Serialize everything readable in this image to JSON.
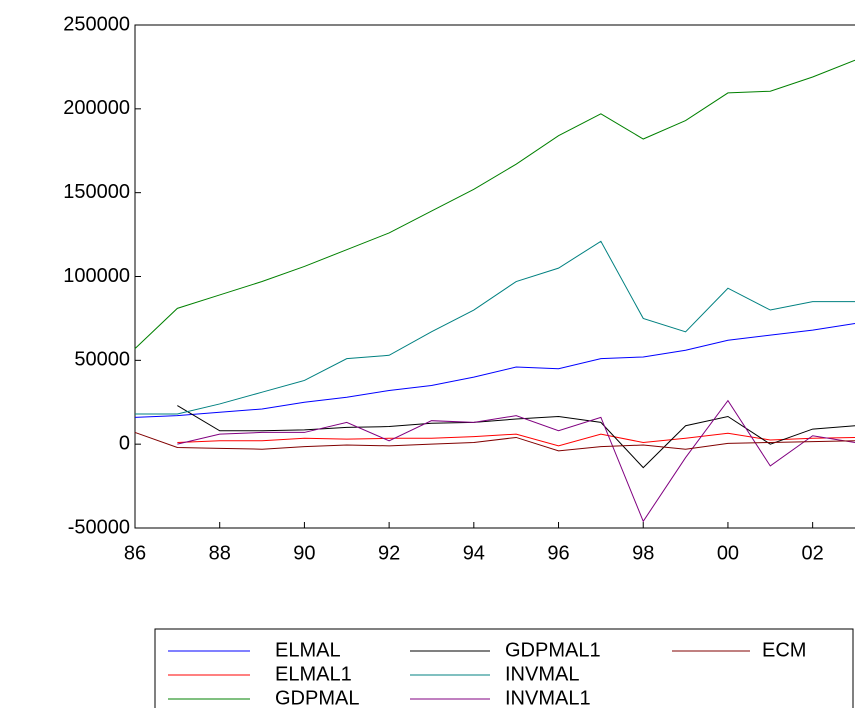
{
  "chart_data": {
    "type": "line",
    "x": [
      1986,
      1987,
      1988,
      1989,
      1990,
      1991,
      1992,
      1993,
      1994,
      1995,
      1996,
      1997,
      1998,
      1999,
      2000,
      2001,
      2002,
      2003
    ],
    "xlim": [
      1986,
      2003
    ],
    "xticks": [
      {
        "value": 1986,
        "label": "86"
      },
      {
        "value": 1988,
        "label": "88"
      },
      {
        "value": 1990,
        "label": "90"
      },
      {
        "value": 1992,
        "label": "92"
      },
      {
        "value": 1994,
        "label": "94"
      },
      {
        "value": 1996,
        "label": "96"
      },
      {
        "value": 1998,
        "label": "98"
      },
      {
        "value": 2000,
        "label": "00"
      },
      {
        "value": 2002,
        "label": "02"
      }
    ],
    "ylim": [
      -50000,
      250000
    ],
    "yticks": [
      -50000,
      0,
      50000,
      100000,
      150000,
      200000,
      250000
    ],
    "series": [
      {
        "name": "ELMAL",
        "color": "#0000ff",
        "values": [
          16000,
          17000,
          19000,
          21000,
          25000,
          28000,
          32000,
          35000,
          40000,
          46000,
          45000,
          51000,
          52000,
          56000,
          62000,
          65000,
          68000,
          72000
        ]
      },
      {
        "name": "ELMAL1",
        "color": "#ff0000",
        "values": [
          null,
          1000,
          2000,
          2000,
          3500,
          3000,
          3500,
          3500,
          4500,
          6000,
          -1000,
          6000,
          1000,
          3500,
          6500,
          2500,
          3500,
          4000
        ]
      },
      {
        "name": "GDPMAL",
        "color": "#008000",
        "values": [
          57000,
          81000,
          89000,
          97000,
          106000,
          116000,
          126000,
          139000,
          152000,
          167000,
          184000,
          197000,
          182000,
          193000,
          209500,
          210500,
          219000,
          229000
        ]
      },
      {
        "name": "GDPMAL1",
        "color": "#000000",
        "values": [
          null,
          23000,
          8000,
          8000,
          8500,
          10000,
          10500,
          12500,
          13000,
          15000,
          16500,
          13000,
          -14000,
          11000,
          16500,
          0,
          9000,
          11000
        ]
      },
      {
        "name": "INVMAL",
        "color": "#008080",
        "values": [
          18000,
          18000,
          24000,
          31000,
          38000,
          51000,
          53000,
          67000,
          80000,
          97000,
          105000,
          121000,
          75000,
          67000,
          93000,
          80000,
          85000,
          85000
        ]
      },
      {
        "name": "INVMAL1",
        "color": "#800080",
        "values": [
          null,
          0,
          6000,
          7000,
          7000,
          13000,
          2000,
          14000,
          13000,
          17000,
          8000,
          16000,
          -46000,
          -8000,
          26000,
          -13000,
          5000,
          1000
        ]
      },
      {
        "name": "ECM",
        "color": "#800000",
        "values": [
          7000,
          -2000,
          -2500,
          -3000,
          -1500,
          -500,
          -1000,
          0,
          1000,
          4000,
          -4000,
          -1500,
          -500,
          -3000,
          500,
          1000,
          1500,
          2000
        ]
      }
    ]
  }
}
